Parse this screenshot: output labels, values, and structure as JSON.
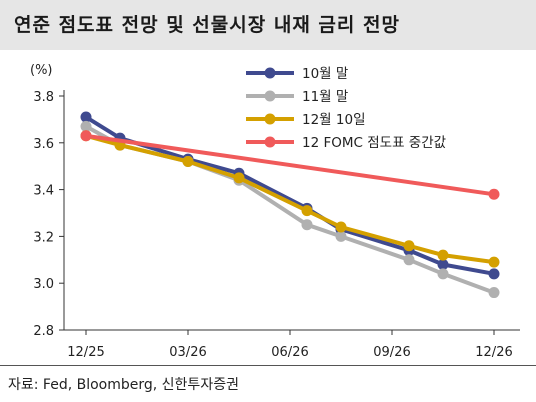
{
  "title": "연준 점도표 전망 및 선물시장 내재 금리 전망",
  "source": "자료: Fed, Bloomberg, 신한투자증권",
  "chart_data": {
    "type": "line",
    "ylabel": "(%)",
    "xlabel": "",
    "ylim": [
      2.8,
      3.8
    ],
    "yticks": [
      2.8,
      3.0,
      3.2,
      3.4,
      3.6,
      3.8
    ],
    "yticks_text": [
      "2.8",
      "3.0",
      "3.2",
      "3.4",
      "3.6",
      "3.8"
    ],
    "xlim": [
      0,
      12
    ],
    "xticks": [
      0,
      3,
      6,
      9,
      12
    ],
    "xticks_text": [
      "12/25",
      "03/26",
      "06/26",
      "09/26",
      "12/26"
    ],
    "grid": false,
    "legend_position": "top-right",
    "series": [
      {
        "name": "10월 말",
        "color": "#3f4a8f",
        "x": [
          0,
          1,
          3,
          4.5,
          6.5,
          7.5,
          9.5,
          10.5,
          12
        ],
        "values": [
          3.71,
          3.62,
          3.53,
          3.47,
          3.32,
          3.23,
          3.14,
          3.08,
          3.04
        ]
      },
      {
        "name": "11월 말",
        "color": "#b0b0b0",
        "x": [
          0,
          1,
          3,
          4.5,
          6.5,
          7.5,
          9.5,
          10.5,
          12
        ],
        "values": [
          3.67,
          3.59,
          3.52,
          3.44,
          3.25,
          3.2,
          3.1,
          3.04,
          2.96
        ]
      },
      {
        "name": "12월 10일",
        "color": "#d4a000",
        "x": [
          0,
          1,
          3,
          4.5,
          6.5,
          7.5,
          9.5,
          10.5,
          12
        ],
        "values": [
          3.63,
          3.59,
          3.52,
          3.45,
          3.31,
          3.24,
          3.16,
          3.12,
          3.09
        ]
      },
      {
        "name": "12 FOMC 점도표 중간값",
        "color": "#f05a5a",
        "x": [
          0,
          12
        ],
        "values": [
          3.63,
          3.38
        ]
      }
    ]
  }
}
